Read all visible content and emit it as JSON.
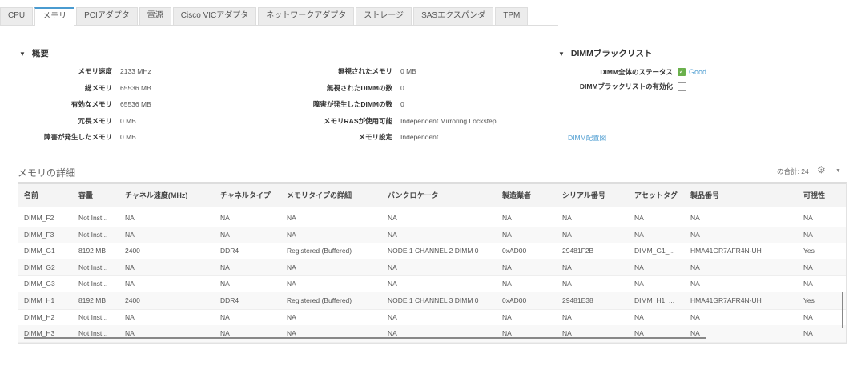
{
  "tabs": [
    {
      "label": "CPU"
    },
    {
      "label": "メモリ",
      "active": true
    },
    {
      "label": "PCIアダプタ"
    },
    {
      "label": "電源"
    },
    {
      "label": "Cisco VICアダプタ"
    },
    {
      "label": "ネットワークアダプタ"
    },
    {
      "label": "ストレージ"
    },
    {
      "label": "SASエクスパンダ"
    },
    {
      "label": "TPM"
    }
  ],
  "summary": {
    "title": "概要",
    "left": [
      {
        "k": "メモリ速度",
        "v": "2133 MHz"
      },
      {
        "k": "総メモリ",
        "v": "65536 MB"
      },
      {
        "k": "有効なメモリ",
        "v": "65536 MB"
      },
      {
        "k": "冗長メモリ",
        "v": "0 MB"
      },
      {
        "k": "障害が発生したメモリ",
        "v": "0 MB"
      }
    ],
    "mid": [
      {
        "k": "無視されたメモリ",
        "v": "0 MB"
      },
      {
        "k": "無視されたDIMMの数",
        "v": "0"
      },
      {
        "k": "障害が発生したDIMMの数",
        "v": "0"
      },
      {
        "k": "メモリRASが使用可能",
        "v": "Independent Mirroring Lockstep"
      },
      {
        "k": "メモリ設定",
        "v": "Independent"
      }
    ]
  },
  "blacklist": {
    "title": "DIMMブラックリスト",
    "status_label": "DIMM全体のステータス",
    "status_value": "Good",
    "status_color": "#6ab04c",
    "enable_label": "DIMMブラックリストの有効化",
    "enabled": false,
    "link": "DIMM配置図"
  },
  "details": {
    "title": "メモリの詳細",
    "count": "の合計: 24",
    "columns": [
      "名前",
      "容量",
      "チャネル速度(MHz)",
      "チャネルタイプ",
      "メモリタイプの詳細",
      "バンクロケータ",
      "製造業者",
      "シリアル番号",
      "アセットタグ",
      "製品番号",
      "可視性"
    ],
    "rows": [
      [
        "DIMM_F2",
        "Not Inst...",
        "NA",
        "NA",
        "NA",
        "NA",
        "NA",
        "NA",
        "NA",
        "NA",
        "NA"
      ],
      [
        "DIMM_F3",
        "Not Inst...",
        "NA",
        "NA",
        "NA",
        "NA",
        "NA",
        "NA",
        "NA",
        "NA",
        "NA"
      ],
      [
        "DIMM_G1",
        "8192 MB",
        "2400",
        "DDR4",
        "Registered (Buffered)",
        "NODE 1 CHANNEL 2 DIMM 0",
        "0xAD00",
        "29481F2B",
        "DIMM_G1_...",
        "HMA41GR7AFR4N-UH",
        "Yes"
      ],
      [
        "DIMM_G2",
        "Not Inst...",
        "NA",
        "NA",
        "NA",
        "NA",
        "NA",
        "NA",
        "NA",
        "NA",
        "NA"
      ],
      [
        "DIMM_G3",
        "Not Inst...",
        "NA",
        "NA",
        "NA",
        "NA",
        "NA",
        "NA",
        "NA",
        "NA",
        "NA"
      ],
      [
        "DIMM_H1",
        "8192 MB",
        "2400",
        "DDR4",
        "Registered (Buffered)",
        "NODE 1 CHANNEL 3 DIMM 0",
        "0xAD00",
        "29481E38",
        "DIMM_H1_...",
        "HMA41GR7AFR4N-UH",
        "Yes"
      ],
      [
        "DIMM_H2",
        "Not Inst...",
        "NA",
        "NA",
        "NA",
        "NA",
        "NA",
        "NA",
        "NA",
        "NA",
        "NA"
      ],
      [
        "DIMM_H3",
        "Not Inst...",
        "NA",
        "NA",
        "NA",
        "NA",
        "NA",
        "NA",
        "NA",
        "NA",
        "NA"
      ]
    ]
  },
  "icons": {
    "gear": "gear-icon",
    "caret": "chevron-down-icon"
  }
}
